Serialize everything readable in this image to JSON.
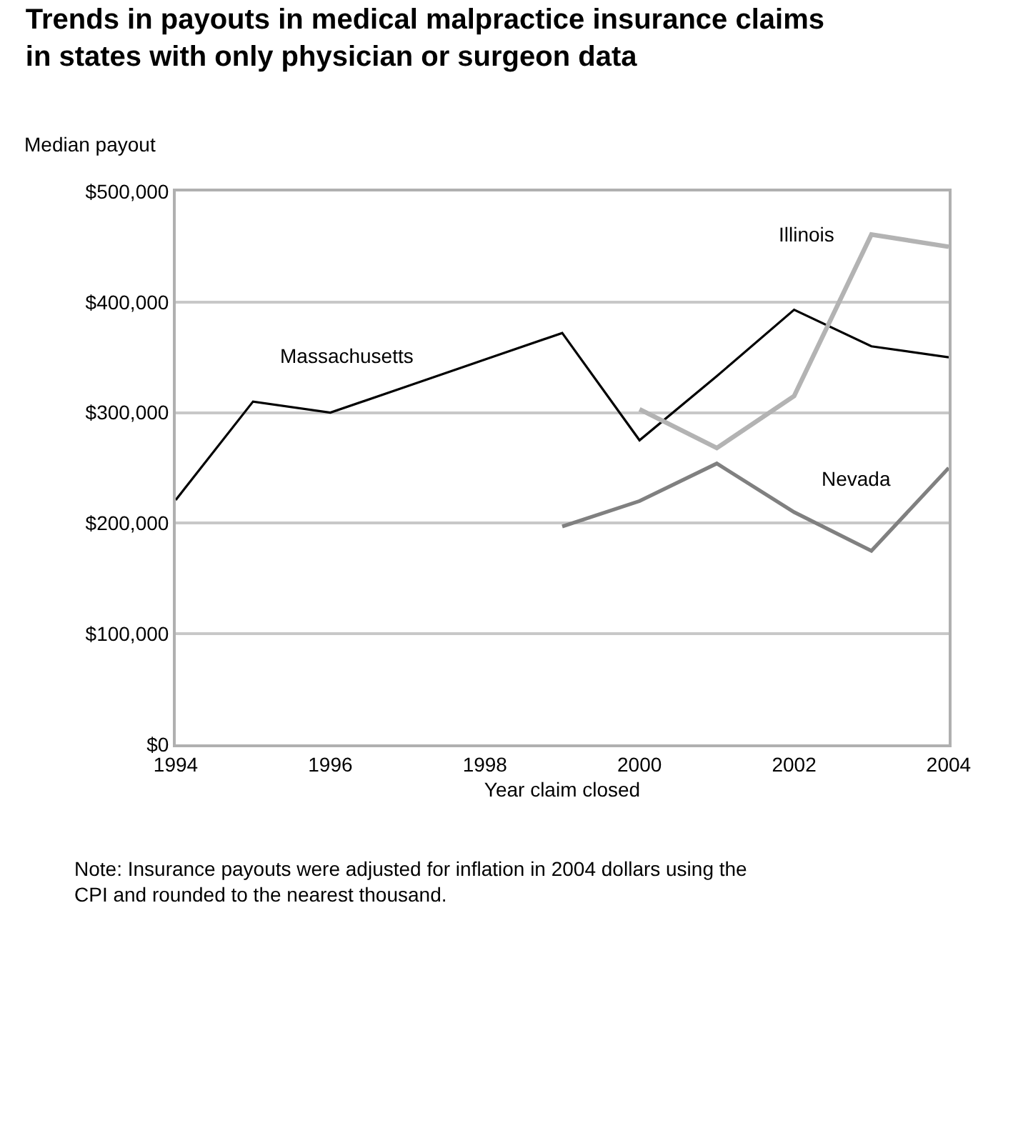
{
  "chart_data": {
    "type": "line",
    "title": "Trends in payouts in medical malpractice insurance claims in states with only physician or surgeon data",
    "ylabel": "Median payout",
    "xlabel": "Year claim closed",
    "x": [
      1994,
      1995,
      1996,
      1997,
      1998,
      1999,
      2000,
      2001,
      2002,
      2003,
      2004
    ],
    "series": [
      {
        "name": "Massachusetts",
        "color": "#000000",
        "values": [
          221000,
          310000,
          300000,
          324000,
          348000,
          372000,
          275000,
          333000,
          393000,
          360000,
          350000
        ]
      },
      {
        "name": "Illinois",
        "color": "#b3b3b3",
        "values": [
          null,
          null,
          null,
          null,
          null,
          null,
          303000,
          268000,
          315000,
          461000,
          450000
        ]
      },
      {
        "name": "Nevada",
        "color": "#808080",
        "values": [
          null,
          null,
          null,
          null,
          null,
          197000,
          220000,
          254000,
          210000,
          175000,
          250000
        ]
      }
    ],
    "xlim": [
      1994,
      2004
    ],
    "xticks": [
      1994,
      1996,
      1998,
      2000,
      2002,
      2004
    ],
    "ylim": [
      0,
      500000
    ],
    "yticks": [
      {
        "value": 0,
        "label": "$0"
      },
      {
        "value": 100000,
        "label": "$100,000"
      },
      {
        "value": 200000,
        "label": "$200,000"
      },
      {
        "value": 300000,
        "label": "$300,000"
      },
      {
        "value": 400000,
        "label": "$400,000"
      },
      {
        "value": 500000,
        "label": "$500,000"
      }
    ],
    "grid": "y",
    "legend": false,
    "marker": "none",
    "line_style": "solid",
    "annotations": [
      "Note: Insurance payouts were adjusted for inflation in 2004 dollars using the CPI and rounded to the nearest thousand."
    ]
  }
}
